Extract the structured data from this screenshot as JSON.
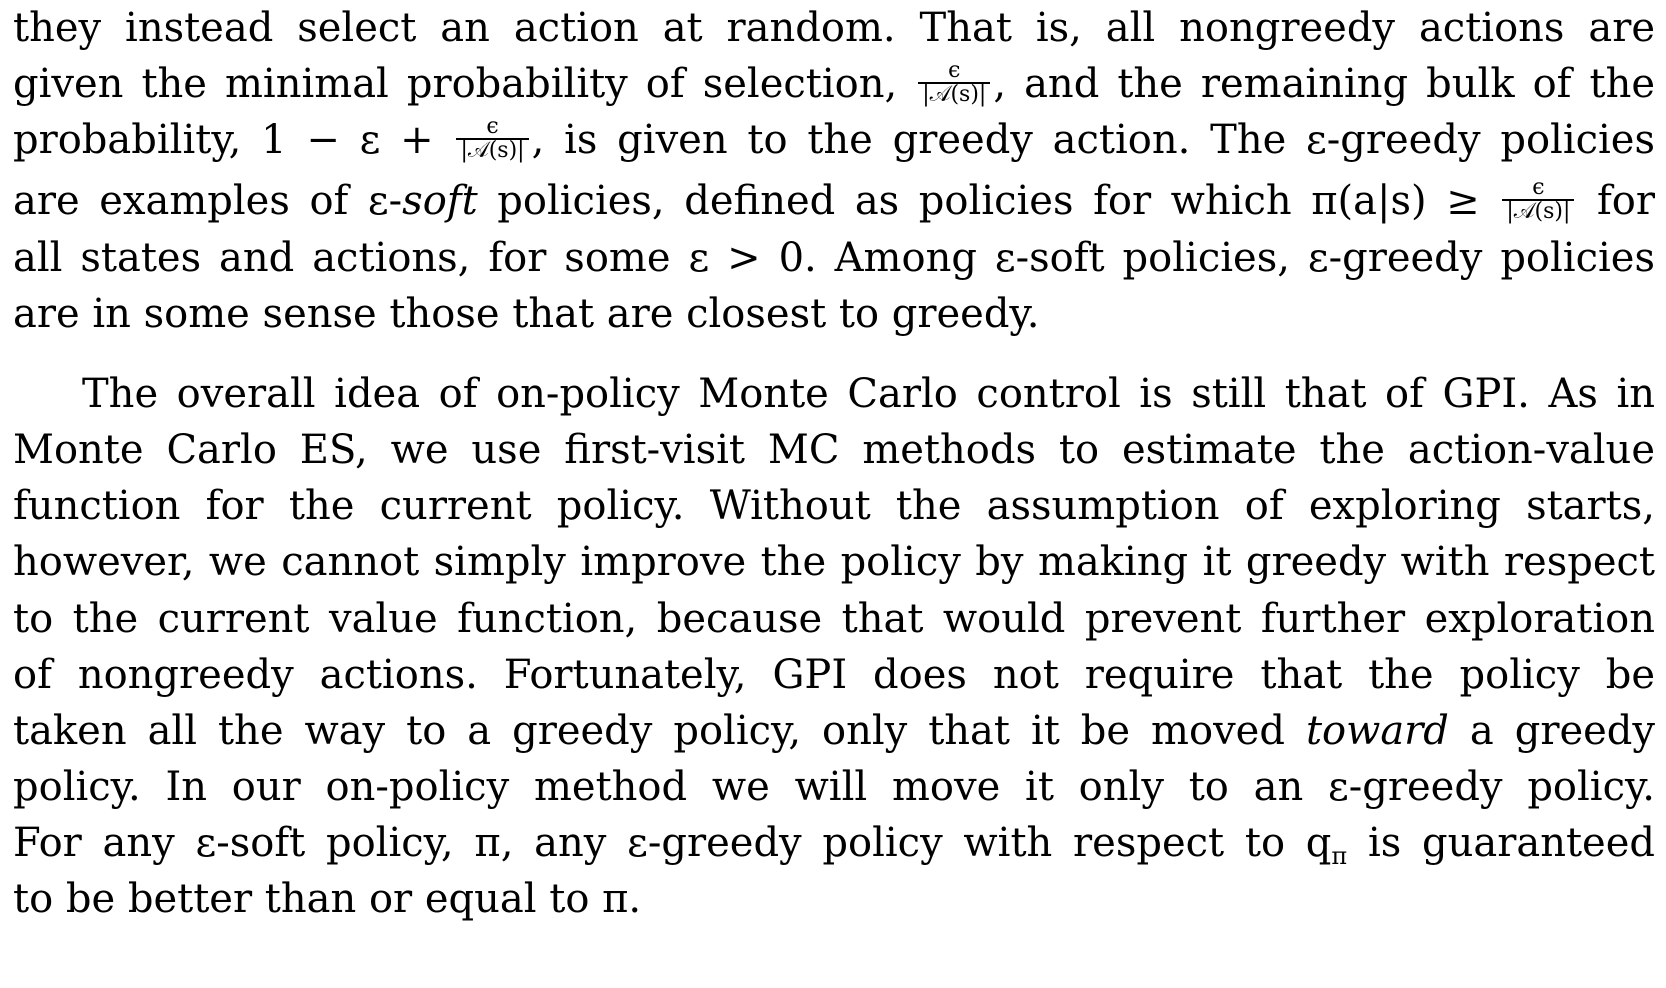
{
  "paragraph1": {
    "l1": "they instead select an action at random.  That is, all nongreedy actions are",
    "l2a": "given the minimal probability of selection,",
    "l2b": ", and the remaining bulk of the",
    "l3a": "probability, 1 − ε +",
    "l3b": ", is given to the greedy action.  The ε-greedy policies",
    "l4a": "are examples of ε-",
    "l4b": "soft",
    "l4c": " policies, defined as policies for which π(a|s) ≥",
    "l4d": " for",
    "l5": "all states and actions, for some ε > 0.  Among ε-soft policies, ε-greedy policies",
    "l6": "are in some sense those that are closest to greedy."
  },
  "fraction": {
    "num": "ϵ",
    "den": "|𝒜(s)|"
  },
  "paragraph2": {
    "l1": "The overall idea of on-policy Monte Carlo control is still that of GPI. As in",
    "l2": "Monte Carlo ES, we use first-visit MC methods to estimate the action-value",
    "l3": "function for the current policy.  Without the assumption of exploring starts,",
    "l4": "however, we cannot simply improve the policy by making it greedy with respect",
    "l5": "to the current value function, because that would prevent further exploration",
    "l6": "of nongreedy actions.  Fortunately, GPI does not require that the policy be",
    "l7a": "taken all the way to a greedy policy, only that it be moved ",
    "l7b": "toward",
    "l7c": " a greedy",
    "l8": "policy.  In our on-policy method we will move it only to an ε-greedy policy.",
    "l9a": "For any ε-soft policy, π, any ε-greedy policy with respect to q",
    "l9b": "π",
    "l9c": " is guaranteed",
    "l10": "to be better than or equal to π."
  }
}
